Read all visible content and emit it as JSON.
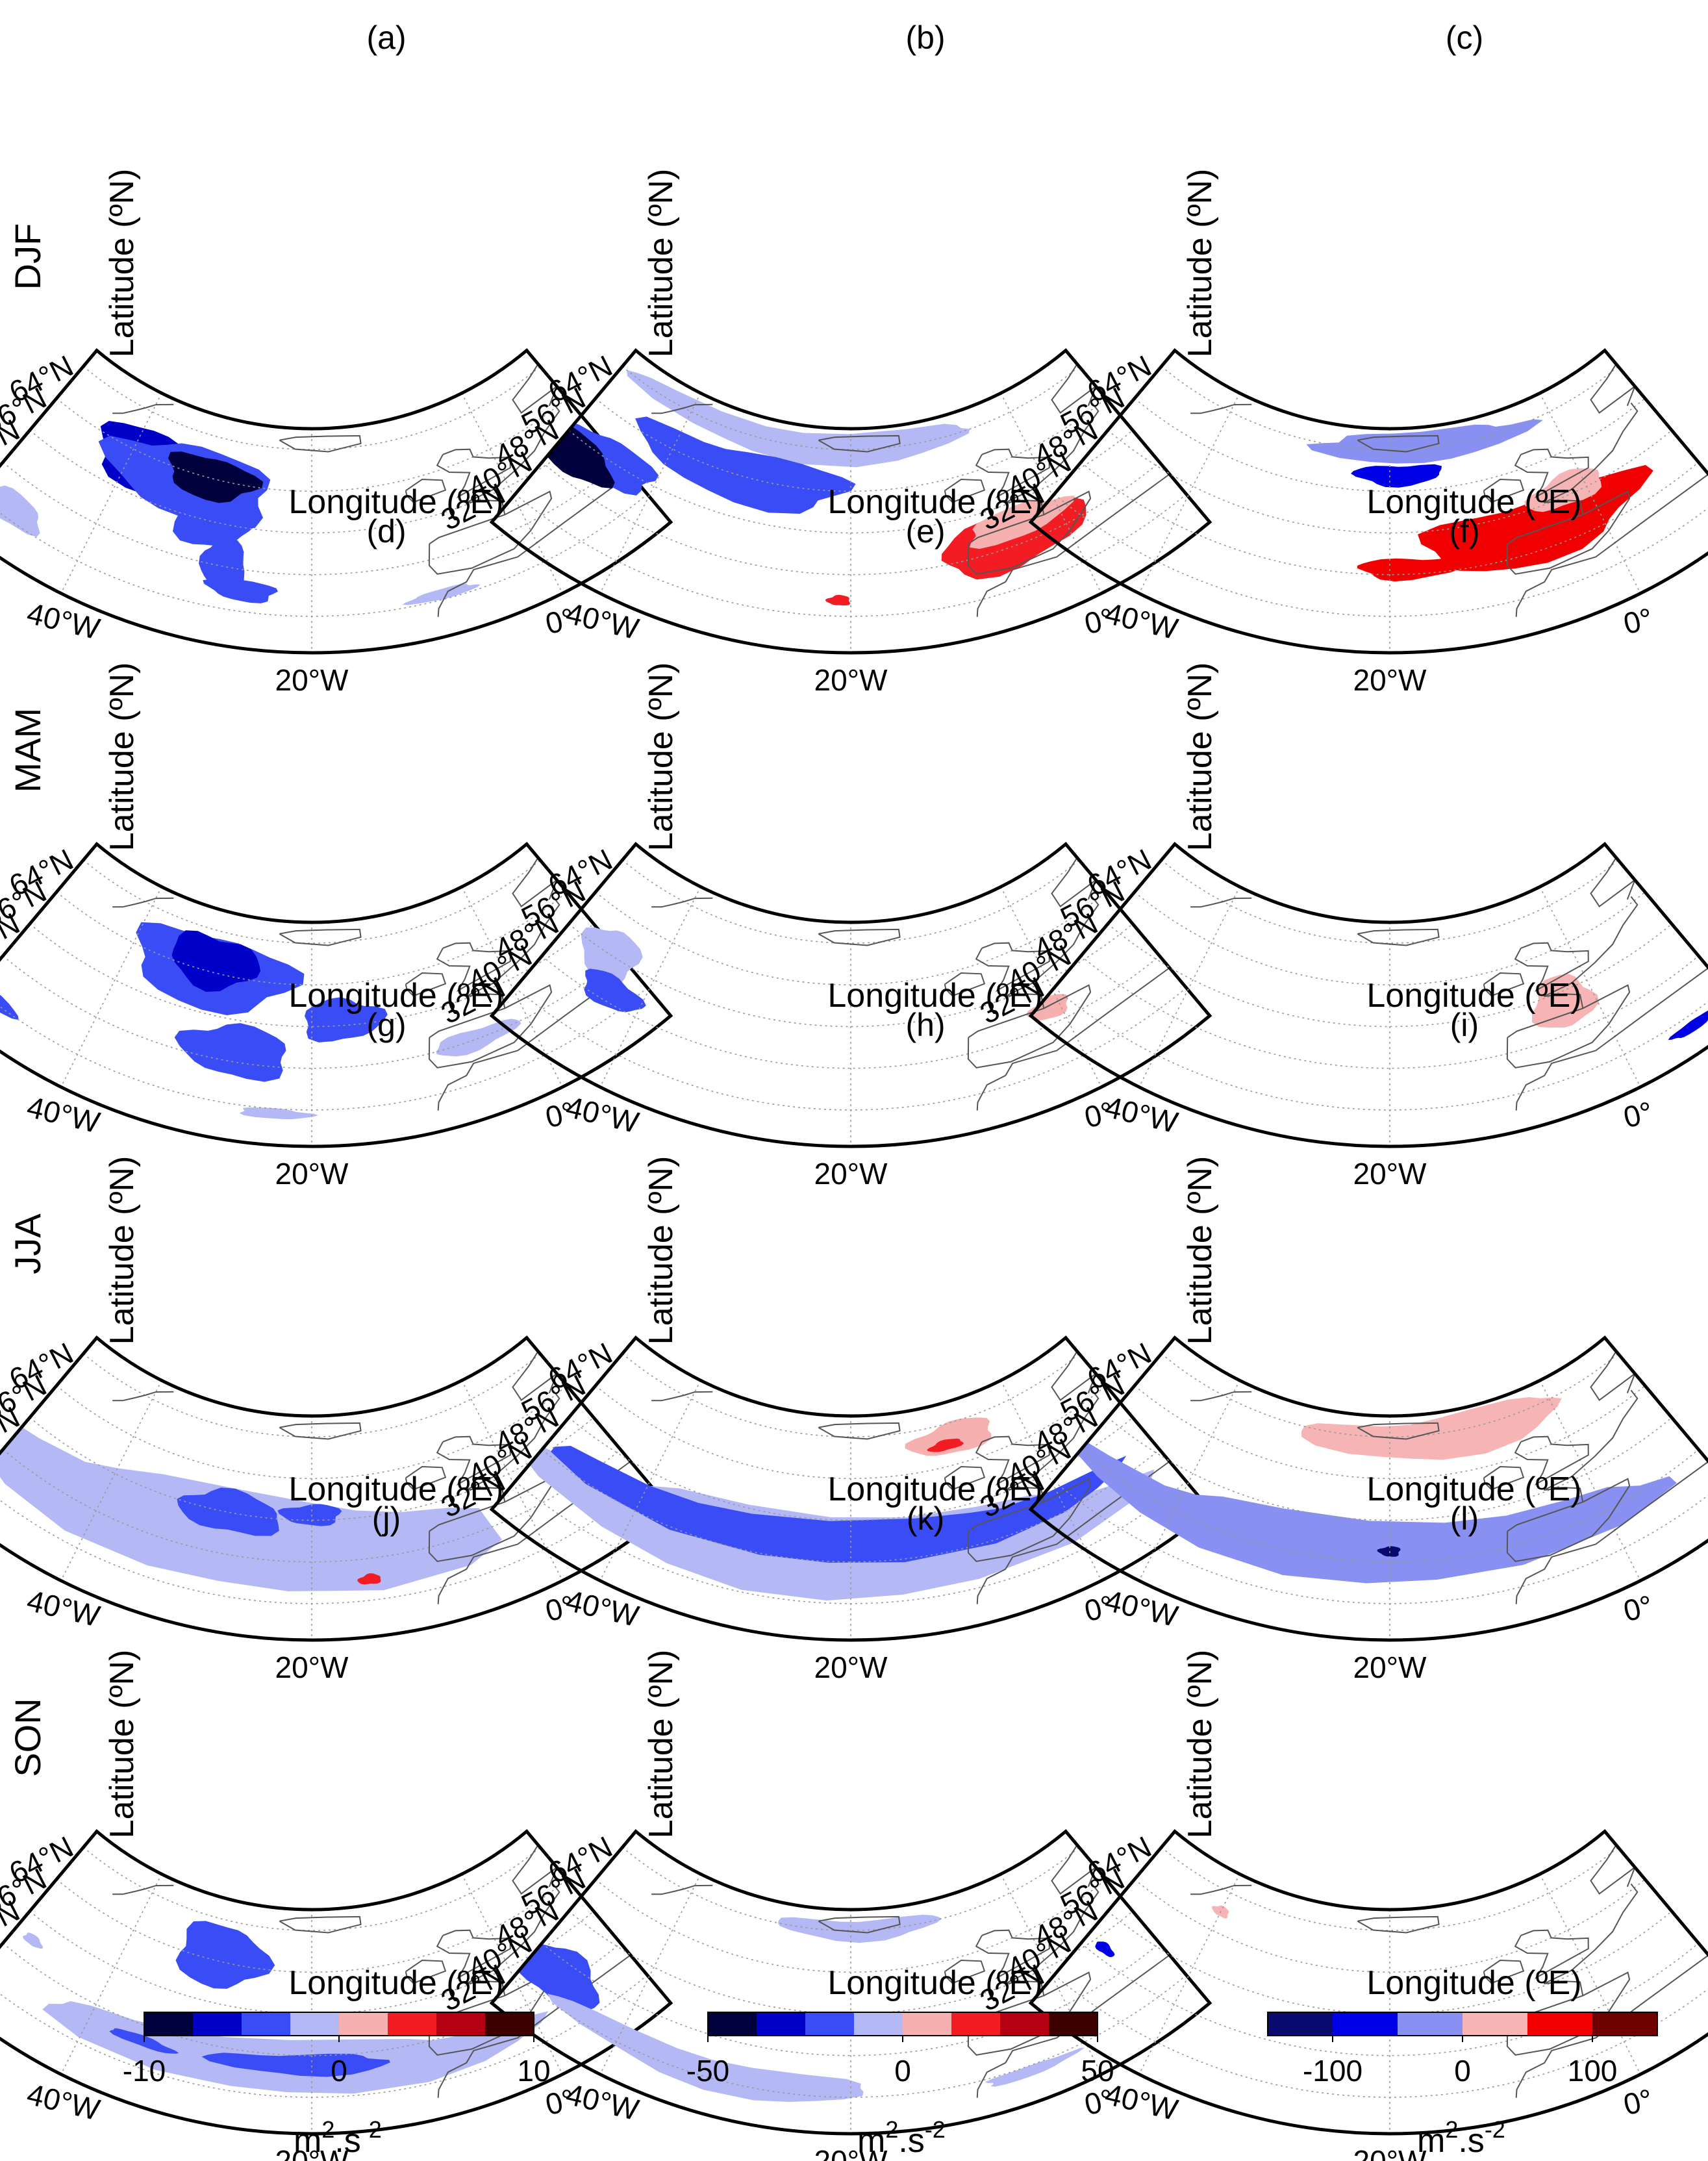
{
  "figure": {
    "rows": [
      {
        "season": "DJF",
        "panels": [
          {
            "label": "(a)",
            "colorbar": 0,
            "patches": [
              {
                "lon": -37,
                "lat": 55,
                "rlon": 7,
                "rlat": 6,
                "level": -3
              },
              {
                "lon": -33,
                "lat": 54,
                "rlon": 9,
                "rlat": 7,
                "level": -2
              },
              {
                "lon": -30,
                "lat": 49,
                "rlon": 4,
                "rlat": 6,
                "level": -2
              },
              {
                "lon": -31,
                "lat": 56,
                "rlon": 5,
                "rlat": 4,
                "level": -4
              },
              {
                "lon": -28,
                "lat": 41,
                "rlon": 2,
                "rlat": 5,
                "level": -2
              },
              {
                "lon": -26,
                "lat": 36,
                "rlon": 3,
                "rlat": 2,
                "level": -2
              },
              {
                "lon": -47,
                "lat": 34,
                "rlon": 3,
                "rlat": 3,
                "level": -1
              },
              {
                "lon": -9,
                "lat": 33,
                "rlon": 3,
                "rlat": 1,
                "level": -1
              }
            ]
          },
          {
            "label": "(b)",
            "colorbar": 1,
            "patches": [
              {
                "lon": -26,
                "lat": 64,
                "rlon": 22,
                "rlat": 3,
                "level": -1
              },
              {
                "lon": -32,
                "lat": 56,
                "rlon": 12,
                "rlat": 5,
                "level": -2
              },
              {
                "lon": -45,
                "lat": 48,
                "rlon": 5,
                "rlat": 4,
                "level": -2
              },
              {
                "lon": -48,
                "lat": 45,
                "rlon": 4,
                "rlat": 4,
                "level": -4
              },
              {
                "lon": -5,
                "lat": 41,
                "rlon": 7,
                "rlat": 5,
                "level": 2
              },
              {
                "lon": -4,
                "lat": 44,
                "rlon": 5,
                "rlat": 3,
                "level": 1
              },
              {
                "lon": -21,
                "lat": 35,
                "rlon": 1,
                "rlat": 1,
                "level": 2
              }
            ]
          },
          {
            "label": "(c)",
            "colorbar": 2,
            "patches": [
              {
                "lon": -16,
                "lat": 64,
                "rlon": 13,
                "rlat": 3,
                "level": -1
              },
              {
                "lon": -19,
                "lat": 59,
                "rlon": 5,
                "rlat": 2,
                "level": -2
              },
              {
                "lon": -6,
                "lat": 44,
                "rlon": 11,
                "rlat": 6,
                "level": 2
              },
              {
                "lon": -18,
                "lat": 41,
                "rlon": 5,
                "rlat": 2,
                "level": 2
              },
              {
                "lon": -2,
                "lat": 49,
                "rlon": 4,
                "rlat": 3,
                "level": 1
              }
            ]
          }
        ]
      },
      {
        "season": "MAM",
        "panels": [
          {
            "label": "(d)",
            "colorbar": 0,
            "patches": [
              {
                "lon": -31,
                "lat": 56,
                "rlon": 9,
                "rlat": 7,
                "level": -2
              },
              {
                "lon": -31,
                "lat": 58,
                "rlon": 5,
                "rlat": 5,
                "level": -3
              },
              {
                "lon": -27,
                "lat": 42,
                "rlon": 5,
                "rlat": 5,
                "level": -2
              },
              {
                "lon": -17,
                "lat": 49,
                "rlon": 4,
                "rlat": 4,
                "level": -2
              },
              {
                "lon": -50,
                "lat": 32,
                "rlon": 4,
                "rlat": 2,
                "level": -2
              },
              {
                "lon": -5,
                "lat": 40,
                "rlon": 4,
                "rlat": 2,
                "level": -1
              },
              {
                "lon": -23,
                "lat": 31,
                "rlon": 3,
                "rlat": 1,
                "level": -1
              }
            ]
          },
          {
            "label": "(e)",
            "colorbar": 1,
            "patches": [
              {
                "lon": -45,
                "lat": 48,
                "rlon": 3,
                "rlat": 5,
                "level": -1
              },
              {
                "lon": -43,
                "lat": 42,
                "rlon": 3,
                "rlat": 3,
                "level": -2
              },
              {
                "lon": -1,
                "lat": 43,
                "rlon": 2,
                "rlat": 2,
                "level": 1
              }
            ]
          },
          {
            "label": "(f)",
            "colorbar": 2,
            "patches": [
              {
                "lon": -3,
                "lat": 46,
                "rlon": 3,
                "rlat": 5,
                "level": 1
              },
              {
                "lon": 6,
                "lat": 30,
                "rlon": 2,
                "rlat": 1,
                "level": -2
              }
            ]
          }
        ]
      },
      {
        "season": "JJA",
        "panels": [
          {
            "label": "(g)",
            "colorbar": 0,
            "patches": [
              {
                "lon": -28,
                "lat": 42,
                "rlon": 26,
                "rlat": 9,
                "level": -1
              },
              {
                "lon": -28,
                "lat": 48,
                "rlon": 5,
                "rlat": 4,
                "level": -2
              },
              {
                "lon": -20,
                "lat": 49,
                "rlon": 3,
                "rlat": 2,
                "level": -2
              },
              {
                "lon": -15,
                "lat": 36,
                "rlon": 1,
                "rlat": 1,
                "level": 2
              }
            ]
          },
          {
            "label": "(h)",
            "colorbar": 1,
            "patches": [
              {
                "lon": -22,
                "lat": 40,
                "rlon": 28,
                "rlat": 8,
                "level": -1
              },
              {
                "lon": -22,
                "lat": 43,
                "rlon": 28,
                "rlat": 4,
                "level": -2
              },
              {
                "lon": -8,
                "lat": 61,
                "rlon": 5,
                "rlat": 3,
                "level": 1
              },
              {
                "lon": -9,
                "lat": 60,
                "rlon": 2,
                "rlat": 1,
                "level": 2
              }
            ]
          },
          {
            "label": "(i)",
            "colorbar": 2,
            "patches": [
              {
                "lon": -14,
                "lat": 63,
                "rlon": 16,
                "rlat": 4,
                "level": 1
              },
              {
                "lon": -22,
                "lat": 41,
                "rlon": 28,
                "rlat": 6,
                "level": -1
              },
              {
                "lon": -20,
                "lat": 42,
                "rlon": 1,
                "rlat": 1,
                "level": -3
              }
            ]
          }
        ]
      },
      {
        "season": "SON",
        "panels": [
          {
            "label": "(j)",
            "colorbar": 0,
            "patches": [
              {
                "lon": -30,
                "lat": 57,
                "rlon": 5,
                "rlat": 6,
                "level": -2
              },
              {
                "lon": -22,
                "lat": 37,
                "rlon": 22,
                "rlat": 5,
                "level": -1
              },
              {
                "lon": -21,
                "lat": 38,
                "rlon": 8,
                "rlat": 2,
                "level": -2
              },
              {
                "lon": -35,
                "lat": 37,
                "rlon": 3,
                "rlat": 1,
                "level": -2
              },
              {
                "lon": -48,
                "lat": 44,
                "rlon": 1,
                "rlat": 1,
                "level": -1
              }
            ]
          },
          {
            "label": "(k)",
            "colorbar": 1,
            "patches": [
              {
                "lon": -19,
                "lat": 64,
                "rlon": 10,
                "rlat": 2,
                "level": -1
              },
              {
                "lon": -47,
                "lat": 37,
                "rlon": 4,
                "rlat": 5,
                "level": -2
              },
              {
                "lon": -32,
                "lat": 33,
                "rlon": 14,
                "rlat": 3,
                "level": -1
              },
              {
                "lon": -5,
                "lat": 31,
                "rlon": 4,
                "rlat": 1,
                "level": -1
              }
            ]
          },
          {
            "label": "(l)",
            "colorbar": 2,
            "patches": [
              {
                "lon": -48,
                "lat": 42,
                "rlon": 1,
                "rlat": 1,
                "level": -2
              },
              {
                "lon": -40,
                "lat": 60,
                "rlon": 1,
                "rlat": 1,
                "level": 1
              }
            ]
          }
        ]
      }
    ],
    "lat_ticks": [
      "64°N",
      "56°N",
      "48°N",
      "40°N",
      "32°N"
    ],
    "lon_ticks": [
      "40°W",
      "20°W",
      "0°"
    ],
    "xlabel": "Longitude (ºE)",
    "ylabel": "Latitude (ºN)",
    "map_extent": {
      "lon": [
        -50,
        10
      ],
      "lat": [
        25,
        68
      ]
    },
    "gridlines": true,
    "colorbars": [
      {
        "ticks": [
          "-10",
          "0",
          "10"
        ],
        "range": [
          -10,
          10
        ],
        "unit": "m",
        "colors": [
          "#00003c",
          "#0000c8",
          "#3a4cf6",
          "#b4b8f4",
          "#f6b0b0",
          "#f31c22",
          "#b40012",
          "#3c0000"
        ]
      },
      {
        "ticks": [
          "-50",
          "0",
          "50"
        ],
        "range": [
          -50,
          50
        ],
        "unit": "m",
        "colors": [
          "#00003c",
          "#0000c8",
          "#3a4cf6",
          "#b4b8f4",
          "#f6b0b0",
          "#f31c22",
          "#b40012",
          "#3c0000"
        ]
      },
      {
        "ticks": [
          "-100",
          "0",
          "100"
        ],
        "range": [
          -150,
          150
        ],
        "unit": "m",
        "colors": [
          "#0a0a6e",
          "#0000e6",
          "#8890f2",
          "#f6b4b4",
          "#f00000",
          "#6e0000"
        ]
      }
    ],
    "unit_exponents": [
      "2",
      ".s",
      "-2"
    ]
  },
  "chart_data": {
    "type": "heatmap",
    "description_grid": "4 seasons x 3 fields, North Atlantic maps",
    "seasons": [
      "DJF",
      "MAM",
      "JJA",
      "SON"
    ],
    "panel_labels": [
      "(a)",
      "(b)",
      "(c)",
      "(d)",
      "(e)",
      "(f)",
      "(g)",
      "(h)",
      "(i)",
      "(j)",
      "(k)",
      "(l)"
    ],
    "xlabel": "Longitude (ºE)",
    "ylabel": "Latitude (ºN)",
    "xticks": [
      "40°W",
      "20°W",
      "0°"
    ],
    "yticks": [
      "64°N",
      "56°N",
      "48°N",
      "40°N",
      "32°N"
    ],
    "colorbar_ranges": [
      [
        -10,
        10
      ],
      [
        -50,
        50
      ],
      [
        -150,
        150
      ]
    ],
    "colorbar_ticks": [
      [
        -10,
        0,
        10
      ],
      [
        -50,
        0,
        50
      ],
      [
        -100,
        0,
        100
      ]
    ]
  }
}
